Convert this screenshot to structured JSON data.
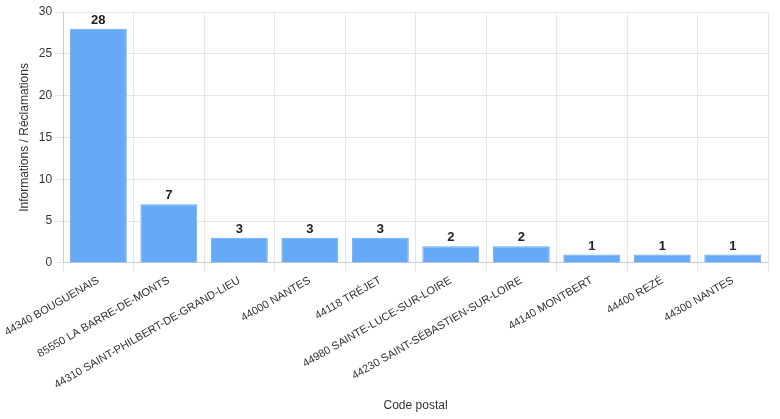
{
  "chart_data": {
    "type": "bar",
    "x_label": "Code postal",
    "y_label": "Informations / Réclamations",
    "categories": [
      "44340 BOUGUENAIS",
      "85550 LA BARRE-DE-MONTS",
      "44310 SAINT-PHILBERT-DE-GRAND-LIEU",
      "44000 NANTES",
      "44118 TRÉJET",
      "44980 SAINTE-LUCE-SUR-LOIRE",
      "44230 SAINT-SÉBASTIEN-SUR-LOIRE",
      "44140 MONTBERT",
      "44400 REZÉ",
      "44300 NANTES"
    ],
    "values": [
      28,
      7,
      3,
      3,
      3,
      2,
      2,
      1,
      1,
      1
    ],
    "color": "#66aaf7",
    "ylim": [
      0,
      30
    ],
    "yticks": [
      0,
      5,
      10,
      15,
      20,
      25,
      30
    ],
    "grid": true,
    "data_labels": true
  }
}
